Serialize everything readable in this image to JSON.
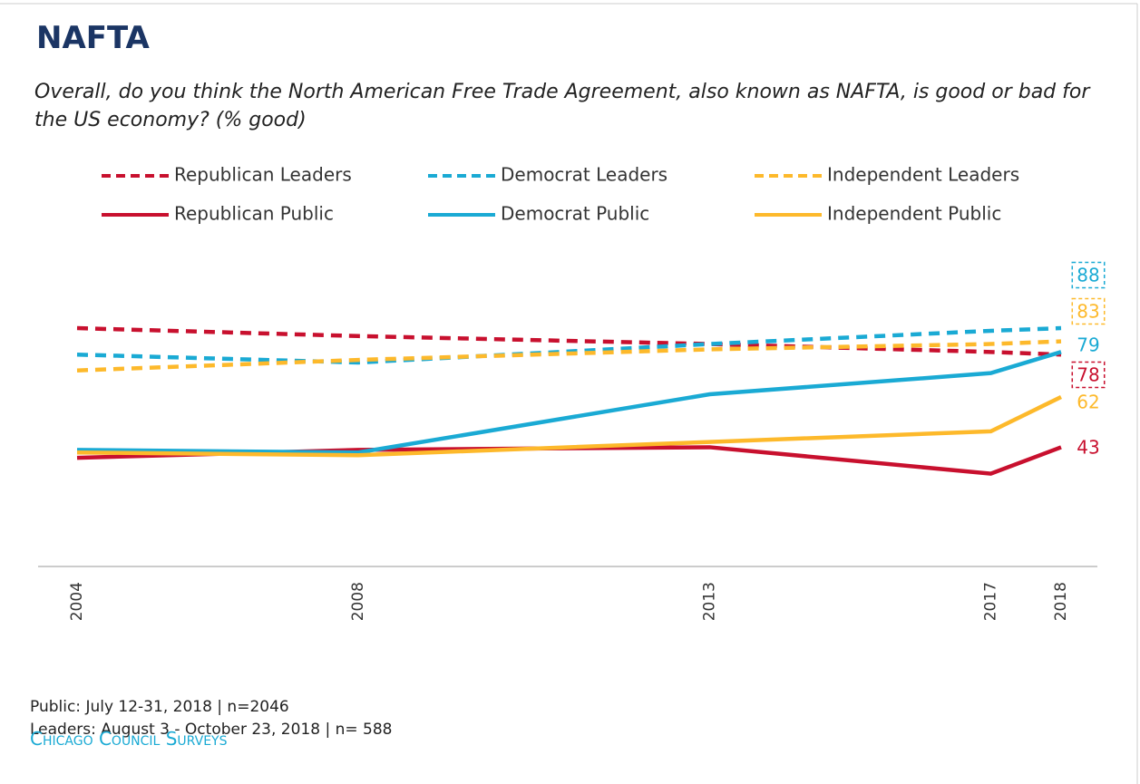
{
  "chart_data": {
    "type": "line",
    "title": "NAFTA",
    "subtitle": "Overall, do you think the North American Free Trade Agreement, also known as NAFTA, is good or bad for the US economy? (% good)",
    "x": [
      2004,
      2008,
      2013,
      2017,
      2018
    ],
    "xlim": [
      2004,
      2018
    ],
    "ylim": [
      0,
      100
    ],
    "series": [
      {
        "name": "Republican Leaders",
        "color": "#c8102e",
        "dashed": true,
        "values": [
          88,
          85,
          82,
          79,
          78
        ]
      },
      {
        "name": "Democrat Leaders",
        "color": "#1aaad4",
        "dashed": true,
        "values": [
          78,
          75,
          82,
          87,
          88
        ]
      },
      {
        "name": "Independent Leaders",
        "color": "#fdb92b",
        "dashed": true,
        "values": [
          72,
          76,
          80,
          82,
          83
        ]
      },
      {
        "name": "Republican Public",
        "color": "#c8102e",
        "dashed": false,
        "values": [
          39,
          42,
          43,
          33,
          43
        ]
      },
      {
        "name": "Democrat Public",
        "color": "#1aaad4",
        "dashed": false,
        "values": [
          42,
          41,
          63,
          71,
          79
        ]
      },
      {
        "name": "Independent Public",
        "color": "#fdb92b",
        "dashed": false,
        "values": [
          41,
          40,
          45,
          49,
          62
        ]
      }
    ],
    "notes": [
      "Public: July 12-31, 2018 | n=2046",
      "Leaders: August 3 - October 23, 2018 | n= 588"
    ],
    "source": "Chicago Council Surveys"
  }
}
